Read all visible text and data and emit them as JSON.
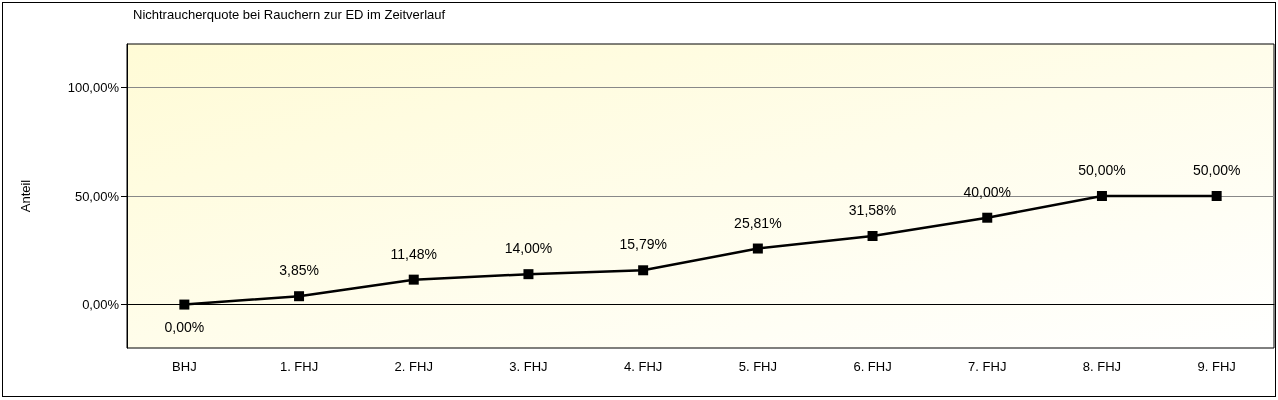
{
  "chart_data": {
    "type": "line",
    "title": "Nichtraucherquote bei Rauchern zur ED im Zeitverlauf",
    "ylabel": "Anteil",
    "categories": [
      "BHJ",
      "1. FHJ",
      "2. FHJ",
      "3. FHJ",
      "4. FHJ",
      "5. FHJ",
      "6. FHJ",
      "7. FHJ",
      "8. FHJ",
      "9. FHJ"
    ],
    "series": [
      {
        "color": "#000000",
        "values": [
          0,
          3.85,
          11.48,
          14,
          15.79,
          25.81,
          31.58,
          40,
          50,
          50
        ],
        "value_labels": [
          "0,00%",
          "3,85%",
          "11,48%",
          "14,00%",
          "15,79%",
          "25,81%",
          "31,58%",
          "40,00%",
          "50,00%",
          "50,00%"
        ]
      }
    ],
    "ylim": [
      -20,
      120
    ],
    "yticks": [
      {
        "value": 0,
        "label": "0,00%"
      },
      {
        "value": 50,
        "label": "50,00%"
      },
      {
        "value": 100,
        "label": "100,00%"
      }
    ],
    "grid": "y",
    "marker": "square",
    "line_style": "solid"
  }
}
